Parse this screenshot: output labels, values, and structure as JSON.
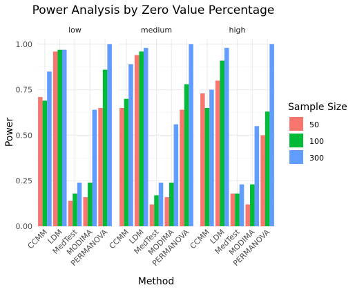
{
  "chart_data": {
    "type": "bar",
    "title": "Power Analysis by Zero Value Percentage",
    "xlabel": "Method",
    "ylabel": "Power",
    "ylim": [
      0,
      1.03
    ],
    "yticks": [
      "0.00",
      "0.25",
      "0.50",
      "0.75",
      "1.00"
    ],
    "ytick_values": [
      0,
      0.25,
      0.5,
      0.75,
      1.0
    ],
    "grid": true,
    "legend": {
      "title": "Sample Size",
      "position": "right"
    },
    "categories": [
      "CCMM",
      "LDM",
      "MedTest",
      "MODIMA",
      "PERMANOVA"
    ],
    "facets": [
      {
        "label": "low",
        "series": [
          {
            "name": "50",
            "color": "#F8766D",
            "values": [
              0.71,
              0.96,
              0.14,
              0.16,
              0.65
            ]
          },
          {
            "name": "100",
            "color": "#00BA38",
            "values": [
              0.69,
              0.97,
              0.18,
              0.24,
              0.86
            ]
          },
          {
            "name": "300",
            "color": "#619CFF",
            "values": [
              0.85,
              0.97,
              0.24,
              0.64,
              1.0
            ]
          }
        ]
      },
      {
        "label": "medium",
        "series": [
          {
            "name": "50",
            "color": "#F8766D",
            "values": [
              0.65,
              0.94,
              0.12,
              0.16,
              0.64
            ]
          },
          {
            "name": "100",
            "color": "#00BA38",
            "values": [
              0.7,
              0.96,
              0.17,
              0.24,
              0.78
            ]
          },
          {
            "name": "300",
            "color": "#619CFF",
            "values": [
              0.89,
              0.98,
              0.24,
              0.56,
              1.0
            ]
          }
        ]
      },
      {
        "label": "high",
        "series": [
          {
            "name": "50",
            "color": "#F8766D",
            "values": [
              0.73,
              0.8,
              0.18,
              0.12,
              0.5
            ]
          },
          {
            "name": "100",
            "color": "#00BA38",
            "values": [
              0.65,
              0.91,
              0.18,
              0.23,
              0.63
            ]
          },
          {
            "name": "300",
            "color": "#619CFF",
            "values": [
              0.75,
              0.98,
              0.23,
              0.55,
              1.0
            ]
          }
        ]
      }
    ]
  }
}
